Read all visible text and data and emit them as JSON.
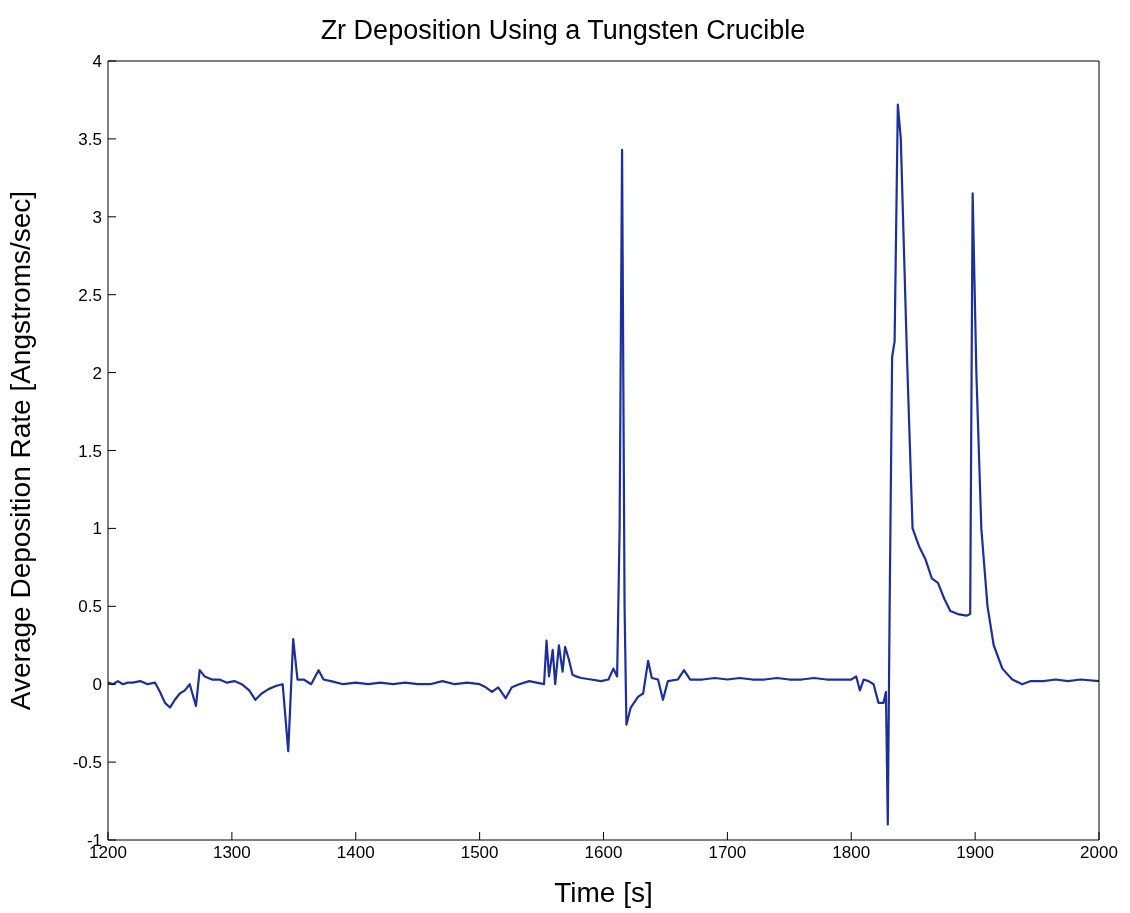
{
  "chart_data": {
    "type": "line",
    "title": "Zr Deposition Using a Tungsten Crucible",
    "xlabel": "Time [s]",
    "ylabel": "Average Deposition Rate [Angstroms/sec]",
    "xlim": [
      1200,
      2000
    ],
    "xticks": [
      1200,
      1300,
      1400,
      1500,
      1600,
      1700,
      1800,
      1900,
      2000
    ],
    "ylim": [
      -1,
      4
    ],
    "yticks": [
      -1,
      -0.5,
      0,
      0.5,
      1,
      1.5,
      2,
      2.5,
      3,
      3.5,
      4
    ],
    "grid": false,
    "marker": "none",
    "line_style": "solid",
    "series": [
      {
        "color": "#1c2f9c",
        "x": [
          1200,
          1204,
          1208,
          1212,
          1216,
          1220,
          1226,
          1232,
          1238,
          1242,
          1246,
          1250,
          1254,
          1258,
          1262,
          1266,
          1271,
          1274,
          1278,
          1284,
          1290,
          1296,
          1302,
          1308,
          1314,
          1319,
          1324,
          1330,
          1336,
          1341,
          1345.5,
          1349.5,
          1353,
          1358,
          1364,
          1370,
          1374,
          1380,
          1390,
          1400,
          1410,
          1420,
          1430,
          1440,
          1450,
          1460,
          1470,
          1480,
          1490,
          1500,
          1505,
          1510,
          1515,
          1521,
          1526,
          1532,
          1540,
          1546,
          1552,
          1554,
          1556,
          1559,
          1561,
          1564,
          1567,
          1569,
          1572,
          1575,
          1578,
          1582,
          1590,
          1598,
          1604,
          1608,
          1611,
          1613,
          1615,
          1617,
          1618.5,
          1622,
          1628,
          1632,
          1636,
          1639,
          1644,
          1648,
          1652,
          1660,
          1665,
          1670,
          1680,
          1690,
          1700,
          1710,
          1720,
          1730,
          1740,
          1750,
          1760,
          1770,
          1780,
          1790,
          1800,
          1804,
          1807,
          1810,
          1814,
          1818,
          1822,
          1826,
          1828,
          1829.5,
          1831,
          1833,
          1835,
          1837.6,
          1840,
          1845,
          1849.5,
          1855,
          1860,
          1865,
          1870,
          1875,
          1880,
          1886,
          1893,
          1896,
          1898,
          1901,
          1905,
          1910,
          1915,
          1922,
          1930,
          1938,
          1945,
          1955,
          1965,
          1975,
          1985,
          2000
        ],
        "values": [
          0.01,
          0.0,
          0.02,
          0.0,
          0.01,
          0.01,
          0.02,
          0.0,
          0.01,
          -0.05,
          -0.12,
          -0.15,
          -0.1,
          -0.06,
          -0.04,
          0.0,
          -0.14,
          0.09,
          0.05,
          0.03,
          0.03,
          0.01,
          0.02,
          0.0,
          -0.04,
          -0.1,
          -0.06,
          -0.03,
          -0.01,
          0.0,
          -0.43,
          0.29,
          0.03,
          0.03,
          0.0,
          0.09,
          0.03,
          0.02,
          0.0,
          0.01,
          0.0,
          0.01,
          0.0,
          0.01,
          0.0,
          0.0,
          0.02,
          0.0,
          0.01,
          0.0,
          -0.02,
          -0.05,
          -0.02,
          -0.09,
          -0.02,
          0.0,
          0.02,
          0.01,
          0.0,
          0.28,
          0.05,
          0.22,
          0.0,
          0.25,
          0.08,
          0.24,
          0.16,
          0.06,
          0.05,
          0.04,
          0.03,
          0.02,
          0.03,
          0.1,
          0.05,
          1.0,
          3.43,
          0.5,
          -0.26,
          -0.15,
          -0.08,
          -0.06,
          0.15,
          0.04,
          0.03,
          -0.1,
          0.02,
          0.03,
          0.09,
          0.03,
          0.03,
          0.04,
          0.03,
          0.04,
          0.03,
          0.03,
          0.04,
          0.03,
          0.03,
          0.04,
          0.03,
          0.03,
          0.03,
          0.05,
          -0.04,
          0.03,
          0.02,
          0.0,
          -0.12,
          -0.12,
          -0.05,
          -0.9,
          0.5,
          2.1,
          2.2,
          3.72,
          3.5,
          2.1,
          1.0,
          0.88,
          0.8,
          0.68,
          0.65,
          0.55,
          0.47,
          0.45,
          0.44,
          0.45,
          3.15,
          2.0,
          1.0,
          0.5,
          0.25,
          0.1,
          0.03,
          0.0,
          0.02,
          0.02,
          0.03,
          0.02,
          0.03,
          0.02
        ]
      }
    ]
  }
}
